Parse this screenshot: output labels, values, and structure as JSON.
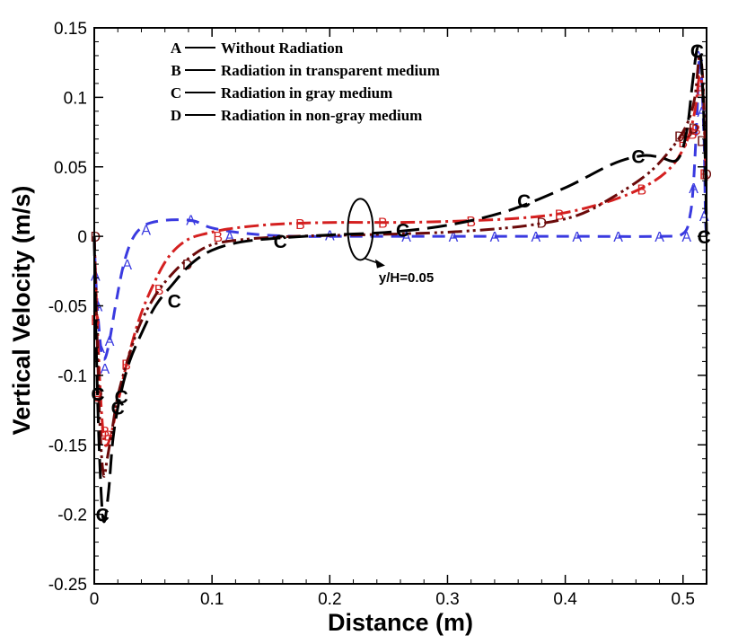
{
  "chart_data": {
    "type": "line",
    "title": "",
    "xlabel": "Distance (m)",
    "ylabel": "Vertical Velocity (m/s)",
    "xlim": [
      0,
      0.52
    ],
    "ylim": [
      -0.25,
      0.15
    ],
    "xticks": [
      0,
      0.1,
      0.2,
      0.3,
      0.4,
      0.5
    ],
    "xtick_labels": [
      "0",
      "0.1",
      "0.2",
      "0.3",
      "0.4",
      "0.5"
    ],
    "yticks": [
      -0.25,
      -0.2,
      -0.15,
      -0.1,
      -0.05,
      0,
      0.05,
      0.1,
      0.15
    ],
    "ytick_labels": [
      "-0.25",
      "-0.2",
      "-0.15",
      "-0.1",
      "-0.05",
      "0",
      "0.05",
      "0.1",
      "0.15"
    ],
    "grid": false,
    "legend_position": "top-center",
    "annotation": {
      "text": "y/H=0.05",
      "ellipse_center": [
        0.226,
        0.005
      ],
      "arrow_to": [
        0.247,
        -0.021
      ],
      "text_at": [
        0.265,
        -0.033
      ]
    },
    "series": [
      {
        "marker": "A",
        "name": "Without Radiation",
        "color": "#3a3ae0",
        "dash": "14,9",
        "x": [
          0,
          0.001,
          0.003,
          0.006,
          0.009,
          0.013,
          0.018,
          0.025,
          0.033,
          0.043,
          0.055,
          0.07,
          0.085,
          0.1,
          0.13,
          0.17,
          0.22,
          0.3,
          0.4,
          0.48,
          0.5,
          0.506,
          0.509,
          0.512,
          0.514,
          0.516,
          0.518,
          0.519,
          0.52
        ],
        "y": [
          0,
          -0.025,
          -0.055,
          -0.083,
          -0.088,
          -0.075,
          -0.05,
          -0.02,
          -0.001,
          0.008,
          0.011,
          0.012,
          0.011,
          0.006,
          0.002,
          0,
          0,
          0,
          0,
          0,
          0.002,
          0.015,
          0.04,
          0.09,
          0.13,
          0.11,
          0.065,
          0.015,
          0
        ],
        "marker_x": [
          0.001,
          0.003,
          0.005,
          0.009,
          0.013,
          0.028,
          0.044,
          0.082,
          0.115,
          0.2,
          0.265,
          0.305,
          0.34,
          0.375,
          0.41,
          0.445,
          0.48,
          0.503,
          0.509,
          0.513,
          0.516,
          0.518
        ],
        "marker_y": [
          -0.028,
          -0.05,
          -0.08,
          -0.095,
          -0.075,
          -0.02,
          0.005,
          0.012,
          0,
          0.001,
          0,
          0,
          0,
          0,
          0,
          0,
          0,
          0,
          0.035,
          0.13,
          0.09,
          0.015
        ]
      },
      {
        "marker": "B",
        "name": "Radiation in transparent medium",
        "color": "#d42020",
        "dash": "16,5,3,5",
        "x": [
          0,
          0.002,
          0.005,
          0.008,
          0.011,
          0.015,
          0.02,
          0.028,
          0.038,
          0.05,
          0.063,
          0.078,
          0.095,
          0.12,
          0.16,
          0.21,
          0.26,
          0.31,
          0.36,
          0.4,
          0.44,
          0.47,
          0.49,
          0.503,
          0.51,
          0.514,
          0.517,
          0.519,
          0.52
        ],
        "y": [
          0,
          -0.05,
          -0.11,
          -0.145,
          -0.15,
          -0.14,
          -0.12,
          -0.09,
          -0.06,
          -0.035,
          -0.015,
          -0.003,
          0.002,
          0.006,
          0.009,
          0.01,
          0.01,
          0.011,
          0.013,
          0.017,
          0.026,
          0.037,
          0.05,
          0.068,
          0.09,
          0.115,
          0.1,
          0.055,
          0.04
        ],
        "marker_x": [
          0.001,
          0.003,
          0.009,
          0.012,
          0.027,
          0.055,
          0.105,
          0.175,
          0.245,
          0.32,
          0.395,
          0.465,
          0.5,
          0.508,
          0.511,
          0.515,
          0.518
        ],
        "marker_y": [
          -0.06,
          -0.115,
          -0.14,
          -0.143,
          -0.092,
          -0.038,
          0,
          0.009,
          0.01,
          0.011,
          0.016,
          0.034,
          0.068,
          0.074,
          0.077,
          0.105,
          0.045
        ]
      },
      {
        "marker": "C",
        "name": "Radiation in gray medium",
        "color": "#000000",
        "dash": "22,9",
        "x": [
          0,
          0.002,
          0.005,
          0.008,
          0.012,
          0.016,
          0.022,
          0.03,
          0.04,
          0.052,
          0.066,
          0.082,
          0.1,
          0.125,
          0.16,
          0.2,
          0.25,
          0.3,
          0.35,
          0.4,
          0.44,
          0.465,
          0.48,
          0.495,
          0.503,
          0.508,
          0.512,
          0.515,
          0.517,
          0.519,
          0.52
        ],
        "y": [
          0,
          -0.09,
          -0.17,
          -0.205,
          -0.185,
          -0.145,
          -0.115,
          -0.09,
          -0.07,
          -0.05,
          -0.035,
          -0.02,
          -0.01,
          -0.004,
          -0.001,
          0.001,
          0.003,
          0.008,
          0.018,
          0.035,
          0.052,
          0.058,
          0.057,
          0.055,
          0.075,
          0.11,
          0.135,
          0.13,
          0.1,
          0.05,
          0
        ],
        "marker_x": [
          0.003,
          0.007,
          0.02,
          0.023,
          0.068,
          0.158,
          0.262,
          0.365,
          0.462,
          0.512,
          0.518
        ],
        "marker_y": [
          -0.113,
          -0.2,
          -0.123,
          -0.115,
          -0.046,
          -0.003,
          0.005,
          0.026,
          0.058,
          0.134,
          0
        ]
      },
      {
        "marker": "D",
        "name": "Radiation in non-gray medium",
        "color": "#6b0a0a",
        "dash": "16,5,3,4,3,5",
        "x": [
          0,
          0.002,
          0.005,
          0.008,
          0.011,
          0.015,
          0.02,
          0.028,
          0.038,
          0.05,
          0.063,
          0.08,
          0.1,
          0.13,
          0.17,
          0.22,
          0.27,
          0.32,
          0.37,
          0.41,
          0.44,
          0.47,
          0.49,
          0.503,
          0.51,
          0.514,
          0.517,
          0.519,
          0.52
        ],
        "y": [
          0,
          -0.06,
          -0.14,
          -0.172,
          -0.16,
          -0.14,
          -0.115,
          -0.09,
          -0.065,
          -0.045,
          -0.03,
          -0.016,
          -0.006,
          -0.002,
          0,
          0.001,
          0.002,
          0.004,
          0.008,
          0.015,
          0.028,
          0.045,
          0.063,
          0.08,
          0.1,
          0.13,
          0.11,
          0.06,
          0.04
        ],
        "marker_x": [
          0.001,
          0.003,
          0.079,
          0.38,
          0.497,
          0.504,
          0.509,
          0.516,
          0.52
        ],
        "marker_y": [
          0,
          -0.113,
          -0.02,
          0.01,
          0.072,
          0.075,
          0.078,
          0.069,
          0.045
        ]
      }
    ]
  }
}
